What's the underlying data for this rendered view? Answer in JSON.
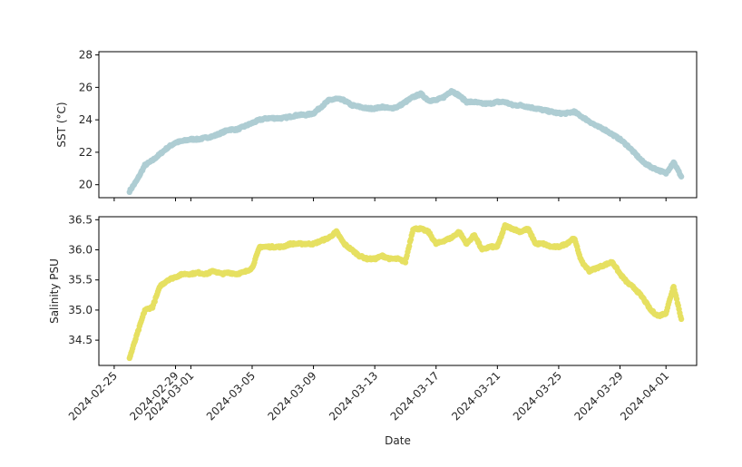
{
  "chart_data": [
    {
      "type": "scatter",
      "title": "",
      "xlabel": "",
      "ylabel": "SST ($^\\circ$C)",
      "ylabel_display": "SST (°C)",
      "ylim": [
        19.2,
        28.2
      ],
      "yticks": [
        20,
        22,
        24,
        26,
        28
      ],
      "xlim": [
        "2024-02-24",
        "2024-04-03"
      ],
      "grid": false,
      "legend": "none",
      "color": "#aecdd3",
      "x": [
        "2024-02-26",
        "2024-02-26T12",
        "2024-02-27",
        "2024-02-27T12",
        "2024-02-28",
        "2024-02-28T12",
        "2024-02-29",
        "2024-02-29T12",
        "2024-03-01",
        "2024-03-01T12",
        "2024-03-02",
        "2024-03-02T12",
        "2024-03-03",
        "2024-03-03T12",
        "2024-03-04",
        "2024-03-04T12",
        "2024-03-05",
        "2024-03-05T12",
        "2024-03-06",
        "2024-03-06T12",
        "2024-03-07",
        "2024-03-07T12",
        "2024-03-08",
        "2024-03-08T12",
        "2024-03-09",
        "2024-03-09T12",
        "2024-03-10",
        "2024-03-10T12",
        "2024-03-11",
        "2024-03-11T12",
        "2024-03-12",
        "2024-03-12T12",
        "2024-03-13",
        "2024-03-13T12",
        "2024-03-14",
        "2024-03-14T12",
        "2024-03-15",
        "2024-03-15T12",
        "2024-03-16",
        "2024-03-16T12",
        "2024-03-17",
        "2024-03-17T12",
        "2024-03-18",
        "2024-03-18T12",
        "2024-03-19",
        "2024-03-19T12",
        "2024-03-20",
        "2024-03-20T12",
        "2024-03-21",
        "2024-03-21T12",
        "2024-03-22",
        "2024-03-22T12",
        "2024-03-23",
        "2024-03-23T12",
        "2024-03-24",
        "2024-03-24T12",
        "2024-03-25",
        "2024-03-25T12",
        "2024-03-26",
        "2024-03-26T12",
        "2024-03-27",
        "2024-03-27T12",
        "2024-03-28",
        "2024-03-28T12",
        "2024-03-29",
        "2024-03-29T12",
        "2024-03-30",
        "2024-03-30T12",
        "2024-03-31",
        "2024-03-31T12",
        "2024-04-01",
        "2024-04-01T12",
        "2024-04-02"
      ],
      "y": [
        19.6,
        20.3,
        21.2,
        21.5,
        21.9,
        22.3,
        22.6,
        22.7,
        22.8,
        22.8,
        22.9,
        23.0,
        23.2,
        23.4,
        23.4,
        23.6,
        23.8,
        24.0,
        24.1,
        24.1,
        24.1,
        24.2,
        24.3,
        24.3,
        24.4,
        24.8,
        25.2,
        25.3,
        25.2,
        24.9,
        24.8,
        24.7,
        24.7,
        24.8,
        24.7,
        24.8,
        25.1,
        25.4,
        25.6,
        25.2,
        25.2,
        25.4,
        25.8,
        25.5,
        25.1,
        25.1,
        25.0,
        25.0,
        25.1,
        25.1,
        24.9,
        24.9,
        24.8,
        24.7,
        24.6,
        24.5,
        24.4,
        24.4,
        24.5,
        24.2,
        23.9,
        23.6,
        23.4,
        23.1,
        22.8,
        22.4,
        21.9,
        21.4,
        21.1,
        20.9,
        20.7,
        21.4,
        20.5
      ]
    },
    {
      "type": "scatter",
      "title": "",
      "xlabel": "Date",
      "ylabel": "Salinity PSU",
      "ylim": [
        34.08,
        36.55
      ],
      "yticks": [
        34.5,
        35.0,
        35.5,
        36.0,
        36.5
      ],
      "xlim": [
        "2024-02-24",
        "2024-04-03"
      ],
      "xticks": [
        "2024-02-25",
        "2024-02-29",
        "2024-03-01",
        "2024-03-05",
        "2024-03-09",
        "2024-03-13",
        "2024-03-17",
        "2024-03-21",
        "2024-03-25",
        "2024-03-29",
        "2024-04-01"
      ],
      "grid": false,
      "legend": "none",
      "color": "#e6e061",
      "x": [
        "2024-02-26",
        "2024-02-26T12",
        "2024-02-27",
        "2024-02-27T12",
        "2024-02-28",
        "2024-02-28T12",
        "2024-02-29",
        "2024-02-29T12",
        "2024-03-01",
        "2024-03-01T12",
        "2024-03-02",
        "2024-03-02T12",
        "2024-03-03",
        "2024-03-03T12",
        "2024-03-04",
        "2024-03-04T12",
        "2024-03-05",
        "2024-03-05T12",
        "2024-03-06",
        "2024-03-06T12",
        "2024-03-07",
        "2024-03-07T12",
        "2024-03-08",
        "2024-03-08T12",
        "2024-03-09",
        "2024-03-09T12",
        "2024-03-10",
        "2024-03-10T12",
        "2024-03-11",
        "2024-03-11T12",
        "2024-03-12",
        "2024-03-12T12",
        "2024-03-13",
        "2024-03-13T12",
        "2024-03-14",
        "2024-03-14T12",
        "2024-03-15",
        "2024-03-15T12",
        "2024-03-16",
        "2024-03-16T12",
        "2024-03-17",
        "2024-03-17T12",
        "2024-03-18",
        "2024-03-18T12",
        "2024-03-19",
        "2024-03-19T12",
        "2024-03-20",
        "2024-03-20T12",
        "2024-03-21",
        "2024-03-21T12",
        "2024-03-22",
        "2024-03-22T12",
        "2024-03-23",
        "2024-03-23T12",
        "2024-03-24",
        "2024-03-24T12",
        "2024-03-25",
        "2024-03-25T12",
        "2024-03-26",
        "2024-03-26T12",
        "2024-03-27",
        "2024-03-27T12",
        "2024-03-28",
        "2024-03-28T12",
        "2024-03-29",
        "2024-03-29T12",
        "2024-03-30",
        "2024-03-30T12",
        "2024-03-31",
        "2024-03-31T12",
        "2024-04-01",
        "2024-04-01T12",
        "2024-04-02"
      ],
      "y": [
        34.2,
        34.6,
        35.0,
        35.05,
        35.4,
        35.5,
        35.55,
        35.6,
        35.6,
        35.62,
        35.6,
        35.65,
        35.6,
        35.62,
        35.6,
        35.63,
        35.7,
        36.05,
        36.05,
        36.05,
        36.05,
        36.1,
        36.1,
        36.1,
        36.1,
        36.15,
        36.2,
        36.3,
        36.1,
        36.0,
        35.9,
        35.85,
        35.85,
        35.9,
        35.85,
        35.85,
        35.8,
        36.35,
        36.35,
        36.3,
        36.1,
        36.15,
        36.2,
        36.3,
        36.1,
        36.25,
        36.0,
        36.05,
        36.05,
        36.4,
        36.35,
        36.3,
        36.35,
        36.1,
        36.1,
        36.05,
        36.05,
        36.1,
        36.2,
        35.8,
        35.65,
        35.7,
        35.75,
        35.8,
        35.6,
        35.45,
        35.35,
        35.2,
        35.0,
        34.9,
        34.95,
        35.4,
        34.85
      ]
    }
  ]
}
